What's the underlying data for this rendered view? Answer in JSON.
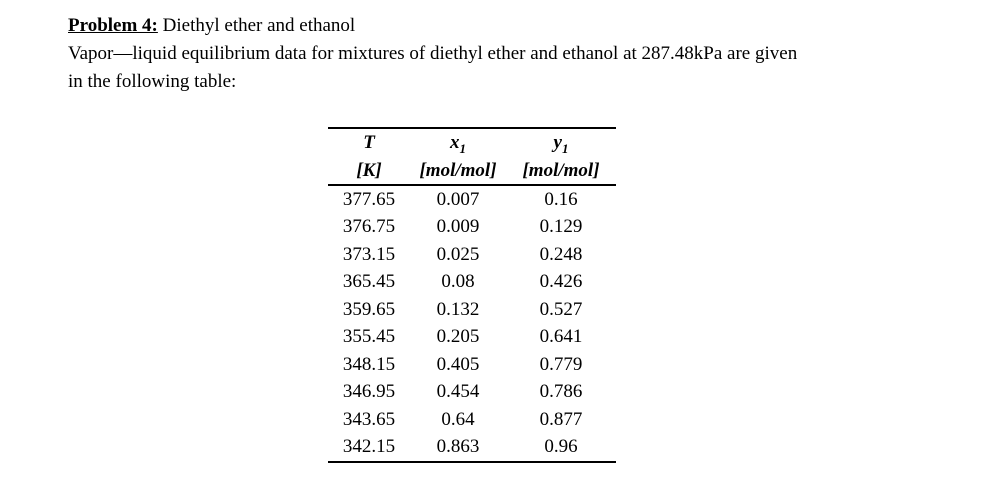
{
  "page": {
    "background": "#ffffff",
    "text_color": "#000000"
  },
  "heading": {
    "label": "Problem 4:",
    "title": "Diethyl ether and ethanol"
  },
  "intro": {
    "line1": "Vapor—liquid equilibrium data for mixtures of diethyl ether and ethanol at 287.48kPa are given",
    "line2": "in the following table:"
  },
  "table": {
    "columns": [
      {
        "symbol": "T",
        "sub": "",
        "unit": "[K]"
      },
      {
        "symbol": "x",
        "sub": "1",
        "unit": "[mol/mol]"
      },
      {
        "symbol": "y",
        "sub": "1",
        "unit": "[mol/mol]"
      }
    ],
    "rows": [
      {
        "T": "377.65",
        "x1": "0.007",
        "y1": "0.16"
      },
      {
        "T": "376.75",
        "x1": "0.009",
        "y1": "0.129"
      },
      {
        "T": "373.15",
        "x1": "0.025",
        "y1": "0.248"
      },
      {
        "T": "365.45",
        "x1": "0.08",
        "y1": "0.426"
      },
      {
        "T": "359.65",
        "x1": "0.132",
        "y1": "0.527"
      },
      {
        "T": "355.45",
        "x1": "0.205",
        "y1": "0.641"
      },
      {
        "T": "348.15",
        "x1": "0.405",
        "y1": "0.779"
      },
      {
        "T": "346.95",
        "x1": "0.454",
        "y1": "0.786"
      },
      {
        "T": "343.65",
        "x1": "0.64",
        "y1": "0.877"
      },
      {
        "T": "342.15",
        "x1": "0.863",
        "y1": "0.96"
      }
    ]
  }
}
